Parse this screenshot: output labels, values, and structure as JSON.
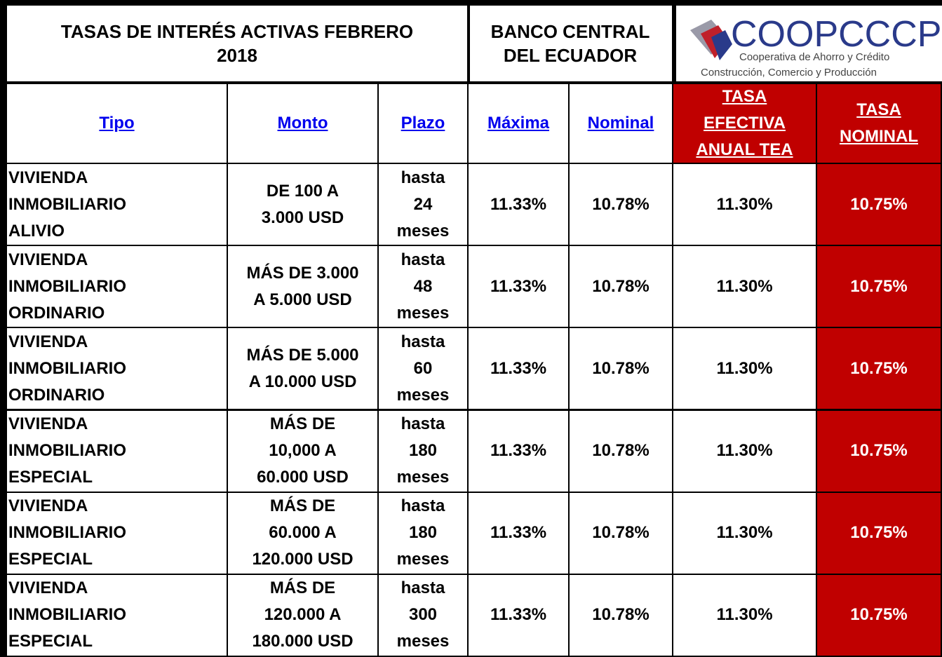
{
  "header": {
    "title": [
      "TASAS DE INTERÉS ACTIVAS FEBRERO",
      "2018"
    ],
    "bank": [
      "BANCO CENTRAL",
      "DEL ECUADOR"
    ],
    "logo": {
      "name": "COOPCCCP",
      "line1": "Cooperativa de Ahorro y Crédito",
      "line2": "Construcción, Comercio y Producción"
    }
  },
  "table": {
    "columns": [
      [
        "Tipo"
      ],
      [
        "Monto"
      ],
      [
        "Plazo"
      ],
      [
        "Máxima"
      ],
      [
        "Nominal"
      ],
      [
        "TASA",
        "EFECTIVA",
        "ANUAL TEA"
      ],
      [
        "TASA",
        "NOMINAL"
      ]
    ],
    "rows": [
      [
        [
          "VIVIENDA",
          "INMOBILIARIO",
          "ALIVIO"
        ],
        [
          "DE 100 A",
          "3.000 USD"
        ],
        [
          "hasta",
          "24",
          "meses"
        ],
        [
          "11.33%"
        ],
        [
          "10.78%"
        ],
        [
          "11.30%"
        ],
        [
          "10.75%"
        ]
      ],
      [
        [
          "VIVIENDA",
          "INMOBILIARIO",
          "ORDINARIO"
        ],
        [
          "MÁS DE 3.000",
          "A 5.000 USD"
        ],
        [
          "hasta",
          "48",
          "meses"
        ],
        [
          "11.33%"
        ],
        [
          "10.78%"
        ],
        [
          "11.30%"
        ],
        [
          "10.75%"
        ]
      ],
      [
        [
          "VIVIENDA",
          "INMOBILIARIO",
          "ORDINARIO"
        ],
        [
          "MÁS DE 5.000",
          "A 10.000 USD"
        ],
        [
          "hasta",
          "60",
          "meses"
        ],
        [
          "11.33%"
        ],
        [
          "10.78%"
        ],
        [
          "11.30%"
        ],
        [
          "10.75%"
        ]
      ],
      [
        [
          "VIVIENDA",
          "INMOBILIARIO",
          "ESPECIAL"
        ],
        [
          "MÁS DE",
          "10,000 A",
          "60.000 USD"
        ],
        [
          "hasta",
          "180",
          "meses"
        ],
        [
          "11.33%"
        ],
        [
          "10.78%"
        ],
        [
          "11.30%"
        ],
        [
          "10.75%"
        ]
      ],
      [
        [
          "VIVIENDA",
          "INMOBILIARIO",
          "ESPECIAL"
        ],
        [
          "MÁS DE",
          "60.000 A",
          "120.000 USD"
        ],
        [
          "hasta",
          "180",
          "meses"
        ],
        [
          "11.33%"
        ],
        [
          "10.78%"
        ],
        [
          "11.30%"
        ],
        [
          "10.75%"
        ]
      ],
      [
        [
          "VIVIENDA",
          "INMOBILIARIO",
          "ESPECIAL"
        ],
        [
          "MÁS DE",
          "120.000 A",
          "180.000 USD"
        ],
        [
          "hasta",
          "300",
          "meses"
        ],
        [
          "11.33%"
        ],
        [
          "10.78%"
        ],
        [
          "11.30%"
        ],
        [
          "10.75%"
        ]
      ]
    ]
  }
}
